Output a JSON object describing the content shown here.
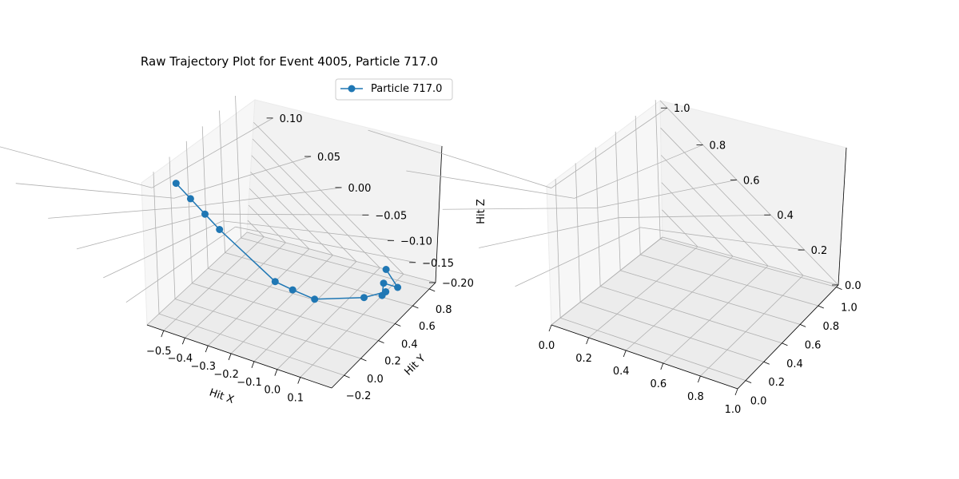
{
  "chart_data": [
    {
      "type": "scatter3d-line",
      "title": "Raw Trajectory Plot for Event 4005, Particle 717.0",
      "xlabel": "Hit X",
      "ylabel": "Hit Y",
      "zlabel": "Hit Z",
      "legend": {
        "placement": "top-right",
        "entries": [
          "Particle 717.0"
        ]
      },
      "color": "#1f77b4",
      "xticks": [
        "−0.5",
        "−0.4",
        "−0.3",
        "−0.2",
        "−0.1",
        "0.0",
        "0.1"
      ],
      "yticks": [
        "−0.2",
        "0.0",
        "0.2",
        "0.4",
        "0.6",
        "0.8"
      ],
      "zticks": [
        "0.10",
        "0.05",
        "0.00",
        "−0.05",
        "−0.10",
        "−0.15",
        "−0.20"
      ],
      "series": [
        {
          "name": "Particle 717.0",
          "points": [
            {
              "x": -0.54,
              "y": -0.14,
              "z": 0.115
            },
            {
              "x": -0.49,
              "y": -0.12,
              "z": 0.085
            },
            {
              "x": -0.44,
              "y": -0.1,
              "z": 0.055
            },
            {
              "x": -0.39,
              "y": -0.08,
              "z": 0.025
            },
            {
              "x": -0.2,
              "y": 0.0,
              "z": -0.075
            },
            {
              "x": -0.15,
              "y": 0.05,
              "z": -0.095
            },
            {
              "x": -0.09,
              "y": 0.12,
              "z": -0.12
            },
            {
              "x": 0.0,
              "y": 0.4,
              "z": -0.16
            },
            {
              "x": 0.04,
              "y": 0.52,
              "z": -0.165
            },
            {
              "x": 0.0,
              "y": 0.6,
              "z": -0.2
            },
            {
              "x": -0.03,
              "y": 0.7,
              "z": -0.2
            },
            {
              "x": 0.05,
              "y": 0.62,
              "z": -0.175
            },
            {
              "x": -0.05,
              "y": 0.78,
              "z": -0.19
            }
          ]
        }
      ]
    },
    {
      "type": "scatter3d",
      "title": "",
      "xticks": [
        "0.0",
        "0.2",
        "0.4",
        "0.6",
        "0.8",
        "1.0"
      ],
      "yticks": [
        "0.0",
        "0.2",
        "0.4",
        "0.6",
        "0.8",
        "1.0"
      ],
      "zticks": [
        "0.0",
        "0.2",
        "0.4",
        "0.6",
        "0.8",
        "1.0"
      ],
      "series": []
    }
  ]
}
